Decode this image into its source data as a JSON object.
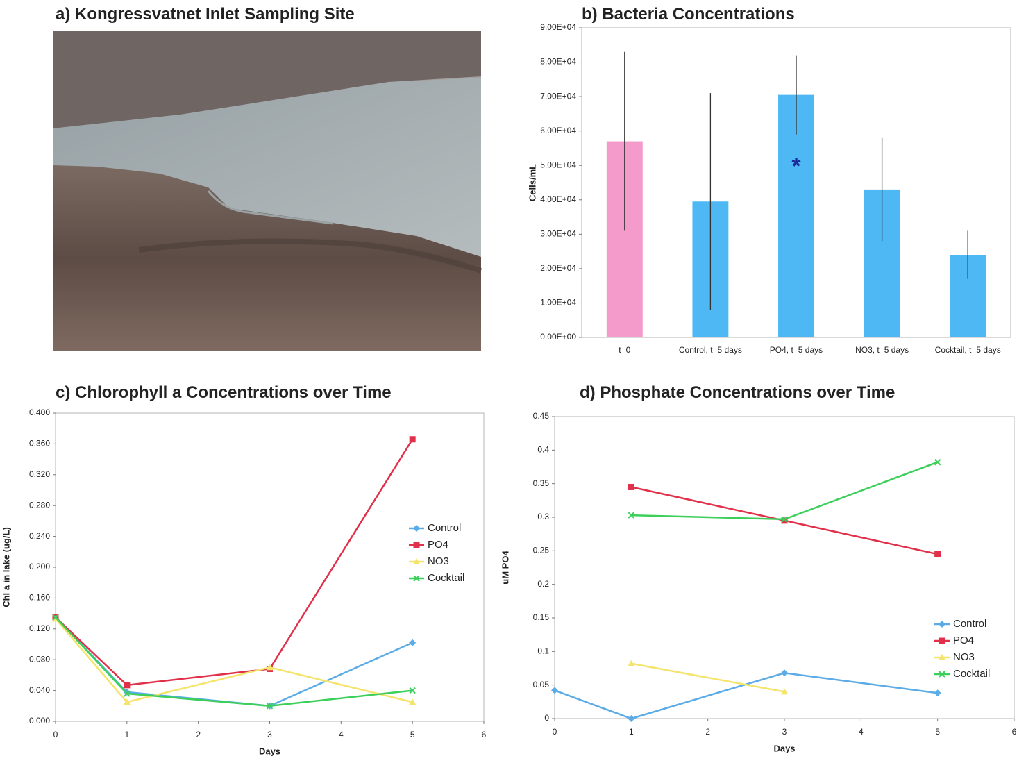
{
  "photo_panel": {
    "title": "a) Kongressvatnet Inlet  Sampling Site"
  },
  "chart_data": [
    {
      "type": "bar",
      "title": "b) Bacteria Concentrations",
      "y_label": "Cells/mL",
      "categories": [
        "t=0",
        "Control, t=5 days",
        "PO4, t=5 days",
        "NO3, t=5 days",
        "Cocktail, t=5 days"
      ],
      "values": [
        57000,
        39500,
        70500,
        43000,
        24000
      ],
      "errors": [
        26000,
        31500,
        11500,
        15000,
        7000
      ],
      "colors": [
        "#f59bcb",
        "#4db8f4",
        "#4db8f4",
        "#4db8f4",
        "#4db8f4"
      ],
      "annotation": "*",
      "ylim": [
        0,
        90000
      ],
      "yticks": [
        {
          "value": 0,
          "label": "0.00E+00"
        },
        {
          "value": 10000,
          "label": "1.00E+04"
        },
        {
          "value": 20000,
          "label": "2.00E+04"
        },
        {
          "value": 30000,
          "label": "3.00E+04"
        },
        {
          "value": 40000,
          "label": "4.00E+04"
        },
        {
          "value": 50000,
          "label": "5.00E+04"
        },
        {
          "value": 60000,
          "label": "6.00E+04"
        },
        {
          "value": 70000,
          "label": "7.00E+04"
        },
        {
          "value": 80000,
          "label": "8.00E+04"
        },
        {
          "value": 90000,
          "label": "9.00E+04"
        }
      ]
    },
    {
      "type": "line",
      "title": "c) Chlorophyll a Concentrations over Time",
      "x_label": "Days",
      "y_label": "Chl a in lake (ug/L)",
      "x": [
        0,
        1,
        3,
        5
      ],
      "series": [
        {
          "name": "Control",
          "color": "#5aabe6",
          "values": [
            0.135,
            0.038,
            0.02,
            0.102
          ]
        },
        {
          "name": "PO4",
          "color": "#e0304a",
          "values": [
            0.135,
            0.047,
            0.068,
            0.366
          ]
        },
        {
          "name": "NO3",
          "color": "#f5e46b",
          "values": [
            0.133,
            0.025,
            0.07,
            0.025
          ]
        },
        {
          "name": "Cocktail",
          "color": "#3ccf5a",
          "values": [
            0.135,
            0.036,
            0.02,
            0.04
          ]
        }
      ],
      "xlim": [
        0,
        6
      ],
      "xticks": [
        0,
        1,
        2,
        3,
        4,
        5,
        6
      ],
      "ylim": [
        0,
        0.4
      ],
      "yticks": [
        {
          "value": 0,
          "label": "0.000"
        },
        {
          "value": 0.04,
          "label": "0.040"
        },
        {
          "value": 0.08,
          "label": "0.080"
        },
        {
          "value": 0.12,
          "label": "0.120"
        },
        {
          "value": 0.16,
          "label": "0.160"
        },
        {
          "value": 0.2,
          "label": "0.200"
        },
        {
          "value": 0.24,
          "label": "0.240"
        },
        {
          "value": 0.28,
          "label": "0.280"
        },
        {
          "value": 0.32,
          "label": "0.320"
        },
        {
          "value": 0.36,
          "label": "0.360"
        },
        {
          "value": 0.4,
          "label": "0.400"
        }
      ],
      "legend": "right"
    },
    {
      "type": "line",
      "title": "d) Phosphate Concentrations over Time",
      "x_label": "Days",
      "y_label": "uM PO4",
      "x": [
        0,
        1,
        3,
        5
      ],
      "series": [
        {
          "name": "Control",
          "color": "#5aabe6",
          "values": [
            0.042,
            0.0,
            0.068,
            0.038
          ]
        },
        {
          "name": "PO4",
          "color": "#e0304a",
          "values": [
            null,
            0.345,
            0.295,
            0.245
          ]
        },
        {
          "name": "NO3",
          "color": "#f5e46b",
          "values": [
            null,
            0.082,
            0.04,
            null
          ]
        },
        {
          "name": "Cocktail",
          "color": "#3ccf5a",
          "values": [
            null,
            0.303,
            0.297,
            0.382
          ]
        }
      ],
      "xlim": [
        0,
        6
      ],
      "xticks": [
        0,
        1,
        2,
        3,
        4,
        5,
        6
      ],
      "ylim": [
        0,
        0.45
      ],
      "yticks": [
        0,
        0.05,
        0.1,
        0.15,
        0.2,
        0.25,
        0.3,
        0.35,
        0.4,
        0.45
      ],
      "legend": "lower right"
    }
  ]
}
